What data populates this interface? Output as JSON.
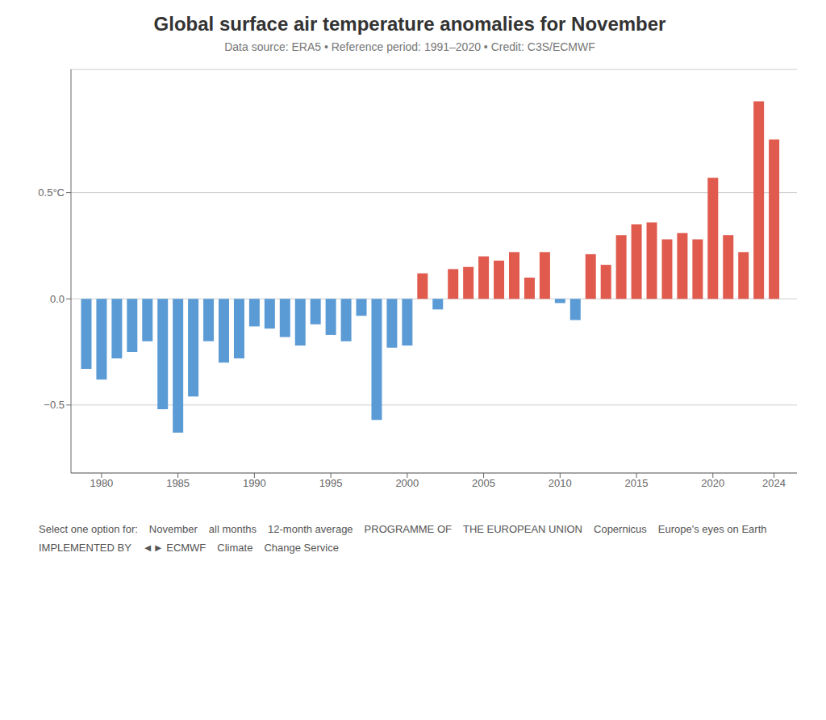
{
  "chart_data": {
    "type": "bar",
    "title": "Global surface air temperature anomalies for November",
    "subtitle": "Data source: ERA5 • Reference period: 1991–2020 • Credit: C3S/ECMWF",
    "x": [
      1979,
      1980,
      1981,
      1982,
      1983,
      1984,
      1985,
      1986,
      1987,
      1988,
      1989,
      1990,
      1991,
      1992,
      1993,
      1994,
      1995,
      1996,
      1997,
      1998,
      1999,
      2000,
      2001,
      2002,
      2003,
      2004,
      2005,
      2006,
      2007,
      2008,
      2009,
      2010,
      2011,
      2012,
      2013,
      2014,
      2015,
      2016,
      2017,
      2018,
      2019,
      2020,
      2021,
      2022,
      2023,
      2024
    ],
    "values": [
      -0.33,
      -0.38,
      -0.28,
      -0.25,
      -0.2,
      -0.52,
      -0.63,
      -0.46,
      -0.2,
      -0.3,
      -0.28,
      -0.13,
      -0.14,
      -0.18,
      -0.22,
      -0.12,
      -0.17,
      -0.2,
      -0.08,
      -0.57,
      -0.23,
      -0.22,
      0.12,
      -0.05,
      0.14,
      0.15,
      0.2,
      0.18,
      0.22,
      0.1,
      0.22,
      -0.02,
      -0.1,
      0.21,
      0.16,
      0.3,
      0.35,
      0.36,
      0.28,
      0.31,
      0.28,
      0.57,
      0.3,
      0.22,
      0.93,
      0.75
    ],
    "colors": [
      "#5b9bd5",
      "#5b9bd5",
      "#5b9bd5",
      "#5b9bd5",
      "#5b9bd5",
      "#5b9bd5",
      "#5b9bd5",
      "#5b9bd5",
      "#5b9bd5",
      "#5b9bd5",
      "#5b9bd5",
      "#5b9bd5",
      "#5b9bd5",
      "#5b9bd5",
      "#5b9bd5",
      "#5b9bd5",
      "#5b9bd5",
      "#5b9bd5",
      "#5b9bd5",
      "#5b9bd5",
      "#5b9bd5",
      "#5b9bd5",
      "#e05a4e",
      "#5b9bd5",
      "#e05a4e",
      "#e05a4e",
      "#e05a4e",
      "#e05a4e",
      "#e05a4e",
      "#e05a4e",
      "#e05a4e",
      "#5b9bd5",
      "#5b9bd5",
      "#e05a4e",
      "#e05a4e",
      "#e05a4e",
      "#e05a4e",
      "#e05a4e",
      "#e05a4e",
      "#e05a4e",
      "#e05a4e",
      "#e05a4e",
      "#e05a4e",
      "#e05a4e",
      "#e05a4e",
      "#e05a4e"
    ],
    "xlim": [
      1978.0,
      2025.5
    ],
    "xticks": [
      1980,
      1985,
      1990,
      1995,
      2000,
      2005,
      2010,
      2015,
      2020,
      2024
    ],
    "ylim": [
      -0.82,
      1.08
    ],
    "yticks": [
      {
        "value": -0.5,
        "label": "−0.5"
      },
      {
        "value": 0.0,
        "label": "0.0"
      },
      {
        "value": 0.5,
        "label": "0.5°C"
      }
    ],
    "grid": true,
    "annotations": [
      "Select one option for:",
      "November",
      "all months",
      "12-month average",
      "PROGRAMME OF",
      "THE EUROPEAN UNION",
      "Copernicus",
      "Europe's eyes on Earth",
      "IMPLEMENTED BY",
      "◄► ECMWF",
      "Climate",
      "Change Service"
    ]
  }
}
